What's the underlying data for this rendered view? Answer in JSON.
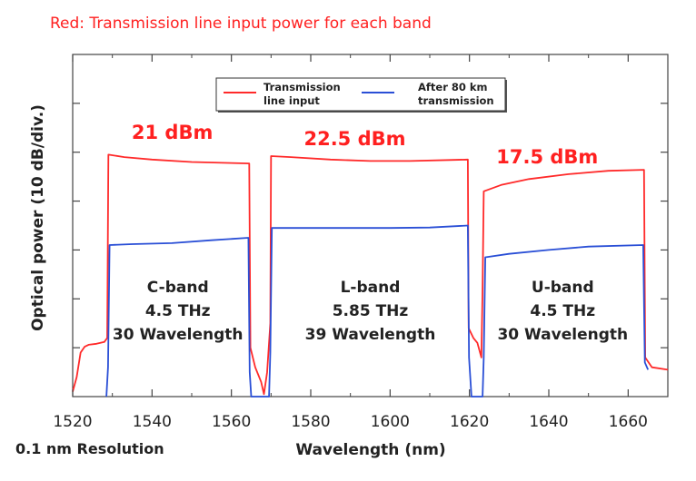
{
  "caption": "Red: Transmission line input power for each band",
  "resolution_note": "0.1 nm Resolution",
  "chart_data": {
    "type": "line",
    "title": "",
    "xlabel": "Wavelength (nm)",
    "ylabel": "Optical power (10 dB/div.)",
    "xlim": [
      1520,
      1670
    ],
    "ylim": [
      0,
      7
    ],
    "x_ticks": [
      1520,
      1540,
      1560,
      1580,
      1600,
      1620,
      1640,
      1660
    ],
    "y_divisions": 7,
    "grid": false,
    "legend_position": "top-center",
    "colors": {
      "input": "#ff2a2a",
      "output": "#2a4fd6",
      "power_label": "#ff2020"
    },
    "series": [
      {
        "name": "Transmission line input",
        "color": "#ff2a2a",
        "points": [
          [
            1520,
            0.1
          ],
          [
            1521,
            0.4
          ],
          [
            1522,
            0.9
          ],
          [
            1523,
            1.02
          ],
          [
            1524,
            1.06
          ],
          [
            1526,
            1.08
          ],
          [
            1528,
            1.12
          ],
          [
            1528.7,
            1.2
          ],
          [
            1529,
            4.95
          ],
          [
            1533,
            4.9
          ],
          [
            1540,
            4.85
          ],
          [
            1550,
            4.8
          ],
          [
            1560,
            4.78
          ],
          [
            1564.5,
            4.77
          ],
          [
            1564.8,
            1.0
          ],
          [
            1566,
            0.6
          ],
          [
            1567.5,
            0.3
          ],
          [
            1568.2,
            0.05
          ],
          [
            1569,
            0.5
          ],
          [
            1569.8,
            1.5
          ],
          [
            1570,
            4.92
          ],
          [
            1575,
            4.9
          ],
          [
            1585,
            4.85
          ],
          [
            1595,
            4.82
          ],
          [
            1605,
            4.82
          ],
          [
            1615,
            4.84
          ],
          [
            1619.6,
            4.85
          ],
          [
            1619.8,
            1.4
          ],
          [
            1621,
            1.2
          ],
          [
            1622,
            1.1
          ],
          [
            1623,
            0.8
          ],
          [
            1623.3,
            2.2
          ],
          [
            1623.6,
            4.2
          ],
          [
            1628,
            4.33
          ],
          [
            1635,
            4.45
          ],
          [
            1645,
            4.55
          ],
          [
            1655,
            4.62
          ],
          [
            1664,
            4.64
          ],
          [
            1664.3,
            0.8
          ],
          [
            1666,
            0.6
          ],
          [
            1670,
            0.55
          ]
        ]
      },
      {
        "name": "After 80 km transmission",
        "color": "#2a4fd6",
        "points": [
          [
            1528.5,
            0
          ],
          [
            1528.9,
            0.6
          ],
          [
            1529.3,
            3.1
          ],
          [
            1535,
            3.12
          ],
          [
            1545,
            3.14
          ],
          [
            1555,
            3.2
          ],
          [
            1564.3,
            3.25
          ],
          [
            1564.6,
            0.5
          ],
          [
            1565,
            0
          ],
          [
            1569.5,
            0
          ],
          [
            1569.8,
            0.9
          ],
          [
            1570.2,
            3.45
          ],
          [
            1580,
            3.45
          ],
          [
            1590,
            3.45
          ],
          [
            1600,
            3.45
          ],
          [
            1610,
            3.46
          ],
          [
            1619.6,
            3.5
          ],
          [
            1619.9,
            0.8
          ],
          [
            1620.5,
            0
          ],
          [
            1623.3,
            0
          ],
          [
            1623.6,
            0.8
          ],
          [
            1624,
            2.85
          ],
          [
            1630,
            2.92
          ],
          [
            1640,
            3.0
          ],
          [
            1650,
            3.07
          ],
          [
            1663.8,
            3.1
          ],
          [
            1664.2,
            0.7
          ],
          [
            1665,
            0.55
          ]
        ]
      }
    ],
    "band_labels": [
      {
        "name": "C-band",
        "bandwidth": "4.5 THz",
        "wavelengths": "30 Wavelength",
        "power": "21 dBm",
        "x_center": 1546.5
      },
      {
        "name": "L-band",
        "bandwidth": "5.85 THz",
        "wavelengths": "39 Wavelength",
        "power": "22.5 dBm",
        "x_center": 1595
      },
      {
        "name": "U-band",
        "bandwidth": "4.5 THz",
        "wavelengths": "30 Wavelength",
        "power": "17.5 dBm",
        "x_center": 1643.5
      }
    ]
  }
}
